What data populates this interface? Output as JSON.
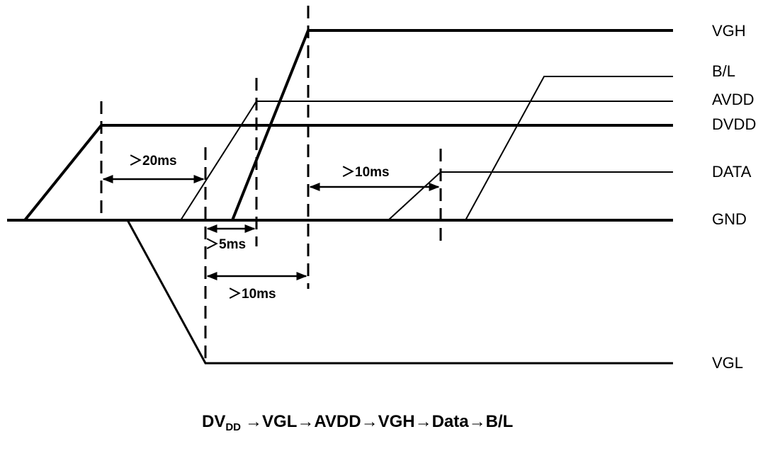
{
  "signals": [
    "VGH",
    "B/L",
    "AVDD",
    "DVDD",
    "DATA",
    "GND",
    "VGL"
  ],
  "timings": [
    "＞20ms",
    "＞10ms",
    "＞5ms",
    "＞10ms"
  ],
  "caption": {
    "main": "DV",
    "subscript": "DD",
    "rest": "→VGL→AVDD→VGH→Data→B/L"
  }
}
